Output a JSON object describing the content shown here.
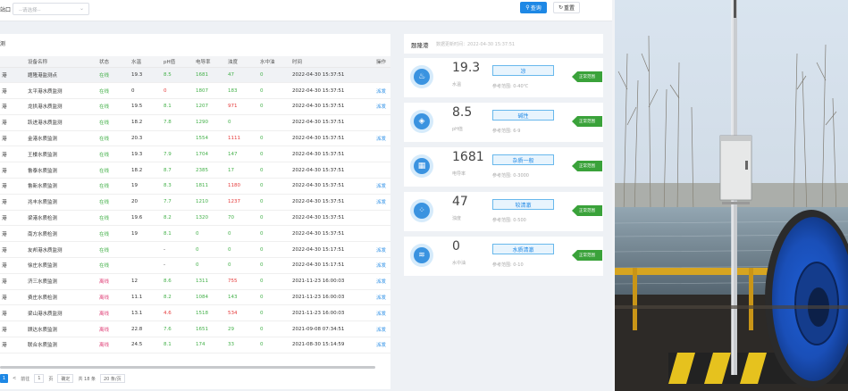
{
  "toolbar": {
    "left_label": "站口",
    "select_placeholder": "--请选择--",
    "query_label": "查询",
    "reset_label": "重置"
  },
  "list_panel": {
    "title": "测",
    "columns": [
      "",
      "设备名称",
      "状态",
      "水温",
      "pH值",
      "电导率",
      "浊度",
      "水中油",
      "时间",
      "操作"
    ],
    "rows": [
      {
        "port": "港",
        "name": "题隆港监测点",
        "status": "在线",
        "status_type": "on",
        "temp": "19.3",
        "ph": "8.5",
        "ph_c": "g",
        "cond": "1681",
        "cond_c": "g",
        "turb": "47",
        "turb_c": "g",
        "oil": "0",
        "oil_c": "g",
        "time": "2022-04-30 15:37:51",
        "op": ""
      },
      {
        "port": "港",
        "name": "太平港水质监测",
        "status": "在线",
        "status_type": "on",
        "temp": "0",
        "ph": "0",
        "ph_c": "r",
        "cond": "1807",
        "cond_c": "g",
        "turb": "183",
        "turb_c": "g",
        "oil": "0",
        "oil_c": "g",
        "time": "2022-04-30 15:37:51",
        "op": "派发"
      },
      {
        "port": "港",
        "name": "龙拱港水质监测",
        "status": "在线",
        "status_type": "on",
        "temp": "19.5",
        "ph": "8.1",
        "ph_c": "g",
        "cond": "1207",
        "cond_c": "g",
        "turb": "971",
        "turb_c": "r",
        "oil": "0",
        "oil_c": "g",
        "time": "2022-04-30 15:37:51",
        "op": "派发"
      },
      {
        "port": "港",
        "name": "跃进港水质监测",
        "status": "在线",
        "status_type": "on",
        "temp": "18.2",
        "ph": "7.8",
        "ph_c": "g",
        "cond": "1290",
        "cond_c": "g",
        "turb": "0",
        "turb_c": "g",
        "oil": "",
        "oil_c": "g",
        "time": "2022-04-30 15:37:51",
        "op": ""
      },
      {
        "port": "港",
        "name": "金港水质监测",
        "status": "在线",
        "status_type": "on",
        "temp": "20.3",
        "ph": "",
        "ph_c": "g",
        "cond": "1554",
        "cond_c": "g",
        "turb": "1111",
        "turb_c": "r",
        "oil": "0",
        "oil_c": "g",
        "time": "2022-04-30 15:37:51",
        "op": "派发"
      },
      {
        "port": "港",
        "name": "王楼水质监测",
        "status": "在线",
        "status_type": "on",
        "temp": "19.3",
        "ph": "7.9",
        "ph_c": "g",
        "cond": "1704",
        "cond_c": "g",
        "turb": "147",
        "turb_c": "g",
        "oil": "0",
        "oil_c": "g",
        "time": "2022-04-30 15:37:51",
        "op": ""
      },
      {
        "port": "港",
        "name": "鲁泰水质监测",
        "status": "在线",
        "status_type": "on",
        "temp": "18.2",
        "ph": "8.7",
        "ph_c": "g",
        "cond": "2385",
        "cond_c": "g",
        "turb": "17",
        "turb_c": "g",
        "oil": "0",
        "oil_c": "g",
        "time": "2022-04-30 15:37:51",
        "op": ""
      },
      {
        "port": "港",
        "name": "鲁新水质监测",
        "status": "在线",
        "status_type": "on",
        "temp": "19",
        "ph": "8.3",
        "ph_c": "g",
        "cond": "1811",
        "cond_c": "g",
        "turb": "1180",
        "turb_c": "r",
        "oil": "0",
        "oil_c": "g",
        "time": "2022-04-30 15:37:51",
        "op": "派发"
      },
      {
        "port": "港",
        "name": "兆丰水质监测",
        "status": "在线",
        "status_type": "on",
        "temp": "20",
        "ph": "7.7",
        "ph_c": "g",
        "cond": "1210",
        "cond_c": "g",
        "turb": "1237",
        "turb_c": "r",
        "oil": "0",
        "oil_c": "g",
        "time": "2022-04-30 15:37:51",
        "op": "派发"
      },
      {
        "port": "港",
        "name": "梁港水质检测",
        "status": "在线",
        "status_type": "on",
        "temp": "19.6",
        "ph": "8.2",
        "ph_c": "g",
        "cond": "1320",
        "cond_c": "g",
        "turb": "70",
        "turb_c": "g",
        "oil": "0",
        "oil_c": "g",
        "time": "2022-04-30 15:37:51",
        "op": ""
      },
      {
        "port": "港",
        "name": "南方水质检测",
        "status": "在线",
        "status_type": "on",
        "temp": "19",
        "ph": "8.1",
        "ph_c": "g",
        "cond": "0",
        "cond_c": "g",
        "turb": "0",
        "turb_c": "g",
        "oil": "0",
        "oil_c": "g",
        "time": "2022-04-30 15:37:51",
        "op": ""
      },
      {
        "port": "港",
        "name": "友邦港水质监测",
        "status": "在线",
        "status_type": "on",
        "temp": "",
        "ph": "-",
        "ph_c": "n",
        "cond": "0",
        "cond_c": "g",
        "turb": "0",
        "turb_c": "g",
        "oil": "0",
        "oil_c": "g",
        "time": "2022-04-30 15:17:51",
        "op": "派发"
      },
      {
        "port": "港",
        "name": "徐庄水质监测",
        "status": "在线",
        "status_type": "on",
        "temp": "",
        "ph": "-",
        "ph_c": "n",
        "cond": "0",
        "cond_c": "g",
        "turb": "0",
        "turb_c": "g",
        "oil": "0",
        "oil_c": "g",
        "time": "2022-04-30 15:17:51",
        "op": "派发"
      },
      {
        "port": "港",
        "name": "济三水质监测",
        "status": "离线",
        "status_type": "off",
        "temp": "12",
        "ph": "8.6",
        "ph_c": "g",
        "cond": "1311",
        "cond_c": "g",
        "turb": "755",
        "turb_c": "r",
        "oil": "0",
        "oil_c": "g",
        "time": "2021-11-23 16:00:03",
        "op": "派发"
      },
      {
        "port": "港",
        "name": "费庄水质检测",
        "status": "离线",
        "status_type": "off",
        "temp": "11.1",
        "ph": "8.2",
        "ph_c": "g",
        "cond": "1084",
        "cond_c": "g",
        "turb": "143",
        "turb_c": "g",
        "oil": "0",
        "oil_c": "g",
        "time": "2021-11-23 16:00:03",
        "op": "派发"
      },
      {
        "port": "港",
        "name": "梁山港水质监测",
        "status": "离线",
        "status_type": "off",
        "temp": "13.1",
        "ph": "4.6",
        "ph_c": "r",
        "cond": "1518",
        "cond_c": "g",
        "turb": "534",
        "turb_c": "r",
        "oil": "0",
        "oil_c": "g",
        "time": "2021-11-23 16:00:03",
        "op": "派发"
      },
      {
        "port": "港",
        "name": "顾达水质监测",
        "status": "离线",
        "status_type": "off",
        "temp": "22.8",
        "ph": "7.6",
        "ph_c": "g",
        "cond": "1651",
        "cond_c": "g",
        "turb": "29",
        "turb_c": "g",
        "oil": "0",
        "oil_c": "g",
        "time": "2021-09-08 07:34:51",
        "op": "派发"
      },
      {
        "port": "港",
        "name": "联合水质监测",
        "status": "离线",
        "status_type": "off",
        "temp": "24.5",
        "ph": "8.1",
        "ph_c": "g",
        "cond": "174",
        "cond_c": "g",
        "turb": "33",
        "turb_c": "g",
        "oil": "0",
        "oil_c": "g",
        "time": "2021-08-30 15:14:59",
        "op": "派发"
      }
    ]
  },
  "pager": {
    "current": "1",
    "prev": "<",
    "goto_label": "前往",
    "page_input": "1",
    "page_unit": "页",
    "confirm": "确定",
    "total": "共 18 条",
    "page_size": "20 条/页"
  },
  "detail_panel": {
    "title": "题隆港",
    "subtitle": "数据更新时间：2022-04-30 15:37:51",
    "cards": [
      {
        "icon": "thermometer-water-icon",
        "glyph": "♨",
        "value": "19.3",
        "unit": "水温",
        "tag": "凉",
        "ref": "参考范围: 0-40℃",
        "badge": "正常范围"
      },
      {
        "icon": "ph-drop-icon",
        "glyph": "◈",
        "value": "8.5",
        "unit": "pH值",
        "tag": "碱性",
        "ref": "参考范围: 6-9",
        "badge": "正常范围"
      },
      {
        "icon": "conductivity-icon",
        "glyph": "▦",
        "value": "1681",
        "unit": "电导率",
        "tag": "杂质一般",
        "ref": "参考范围: 0-3000",
        "badge": "正常范围"
      },
      {
        "icon": "turbidity-icon",
        "glyph": "⁘",
        "value": "47",
        "unit": "浊度",
        "tag": "较清澈",
        "ref": "参考范围: 0-500",
        "badge": "正常范围"
      },
      {
        "icon": "oil-water-icon",
        "glyph": "≋",
        "value": "0",
        "unit": "水中油",
        "tag": "水质清澈",
        "ref": "参考范围: 0-10",
        "badge": "正常范围"
      }
    ]
  }
}
